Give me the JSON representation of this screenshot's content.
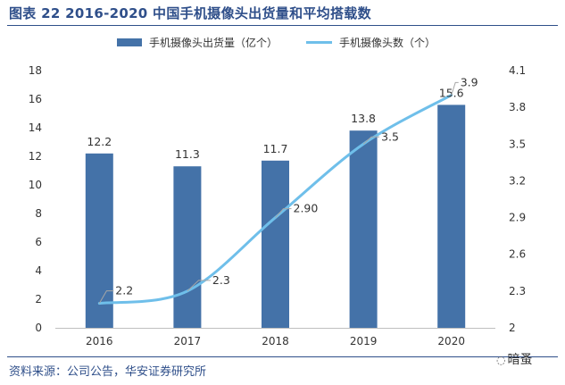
{
  "header": {
    "title": "图表 22 2016-2020 中国手机摄像头出货量和平均搭载数"
  },
  "footer": {
    "source": "资料来源：公司公告，华安证券研究所",
    "watermark": "暗蚤",
    "watermark_icon": "wechat-icon"
  },
  "chart_data": {
    "type": "bar+line",
    "categories": [
      "2016",
      "2017",
      "2018",
      "2019",
      "2020"
    ],
    "series": [
      {
        "name": "手机摄像头出货量（亿个）",
        "type": "bar",
        "axis": "left",
        "color": "#4472a8",
        "values": [
          12.2,
          11.3,
          11.7,
          13.8,
          15.6
        ],
        "labels": [
          "12.2",
          "11.3",
          "11.7",
          "13.8",
          "15.6"
        ]
      },
      {
        "name": "手机摄像头数（个）",
        "type": "line",
        "axis": "right",
        "color": "#6fbfea",
        "values": [
          2.2,
          2.3,
          2.9,
          3.5,
          3.9
        ],
        "labels": [
          "2.2",
          "2.3",
          "2.90",
          "3.5",
          "3.9"
        ]
      }
    ],
    "y_left": {
      "min": 0,
      "max": 18,
      "ticks": [
        "0",
        "2",
        "4",
        "6",
        "8",
        "10",
        "12",
        "14",
        "16",
        "18"
      ]
    },
    "y_right": {
      "min": 2.0,
      "max": 4.1,
      "ticks": [
        "2",
        "2.3",
        "2.6",
        "2.9",
        "3.2",
        "3.5",
        "3.8",
        "4.1"
      ],
      "tick_values": [
        2.0,
        2.3,
        2.6,
        2.9,
        3.2,
        3.5,
        3.8,
        4.1
      ]
    },
    "legend_position": "top-center",
    "grid": false
  }
}
